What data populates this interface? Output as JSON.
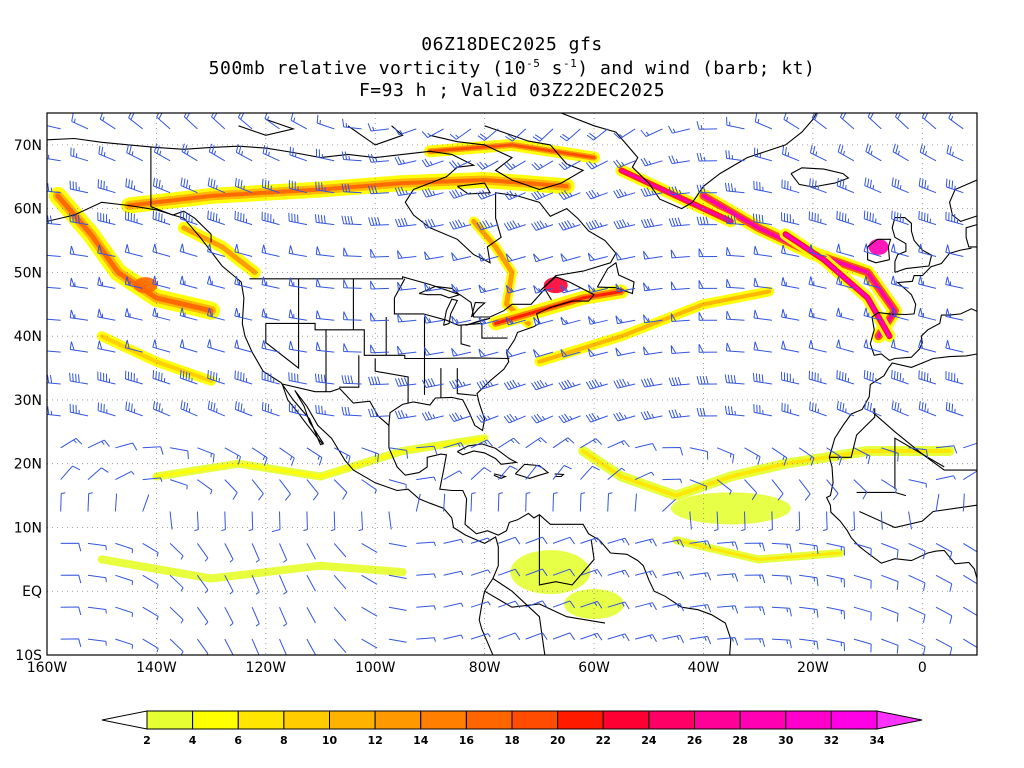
{
  "title": {
    "line1": "06Z18DEC2025 gfs",
    "line2_prefix": "500mb relative vorticity (10",
    "line2_exp1": "-5",
    "line2_mid": " s",
    "line2_exp2": "-1",
    "line2_suffix": ") and wind (barb; kt)",
    "line3": "F=93 h ; Valid 03Z22DEC2025"
  },
  "map": {
    "lon_range": [
      -160,
      10
    ],
    "lat_range": [
      -10,
      75
    ],
    "lon_ticks": [
      {
        "value": -160,
        "label": "160W"
      },
      {
        "value": -140,
        "label": "140W"
      },
      {
        "value": -120,
        "label": "120W"
      },
      {
        "value": -100,
        "label": "100W"
      },
      {
        "value": -80,
        "label": "80W"
      },
      {
        "value": -60,
        "label": "60W"
      },
      {
        "value": -40,
        "label": "40W"
      },
      {
        "value": -20,
        "label": "20W"
      },
      {
        "value": 0,
        "label": "0"
      }
    ],
    "lat_ticks": [
      {
        "value": -10,
        "label": "10S"
      },
      {
        "value": 0,
        "label": "EQ"
      },
      {
        "value": 10,
        "label": "10N"
      },
      {
        "value": 20,
        "label": "20N"
      },
      {
        "value": 30,
        "label": "30N"
      },
      {
        "value": 40,
        "label": "40N"
      },
      {
        "value": 50,
        "label": "50N"
      },
      {
        "value": 60,
        "label": "60N"
      },
      {
        "value": 70,
        "label": "70N"
      }
    ],
    "grid": true,
    "coast_color": "#000000",
    "barb_color": "#3355dd"
  },
  "colorbar": {
    "levels": [
      2,
      4,
      6,
      8,
      10,
      12,
      14,
      16,
      18,
      20,
      22,
      24,
      26,
      28,
      30,
      32,
      34
    ],
    "colors": [
      "#e6ff33",
      "#ffff00",
      "#ffe600",
      "#ffcc00",
      "#ffb300",
      "#ff9900",
      "#ff7f00",
      "#ff6600",
      "#ff4c00",
      "#ff1a00",
      "#ff0033",
      "#ff0066",
      "#ff0099",
      "#ff00b3",
      "#ff00cc",
      "#ff00e6"
    ],
    "under_color": "#ffffff",
    "over_color": "#ff33ff"
  }
}
